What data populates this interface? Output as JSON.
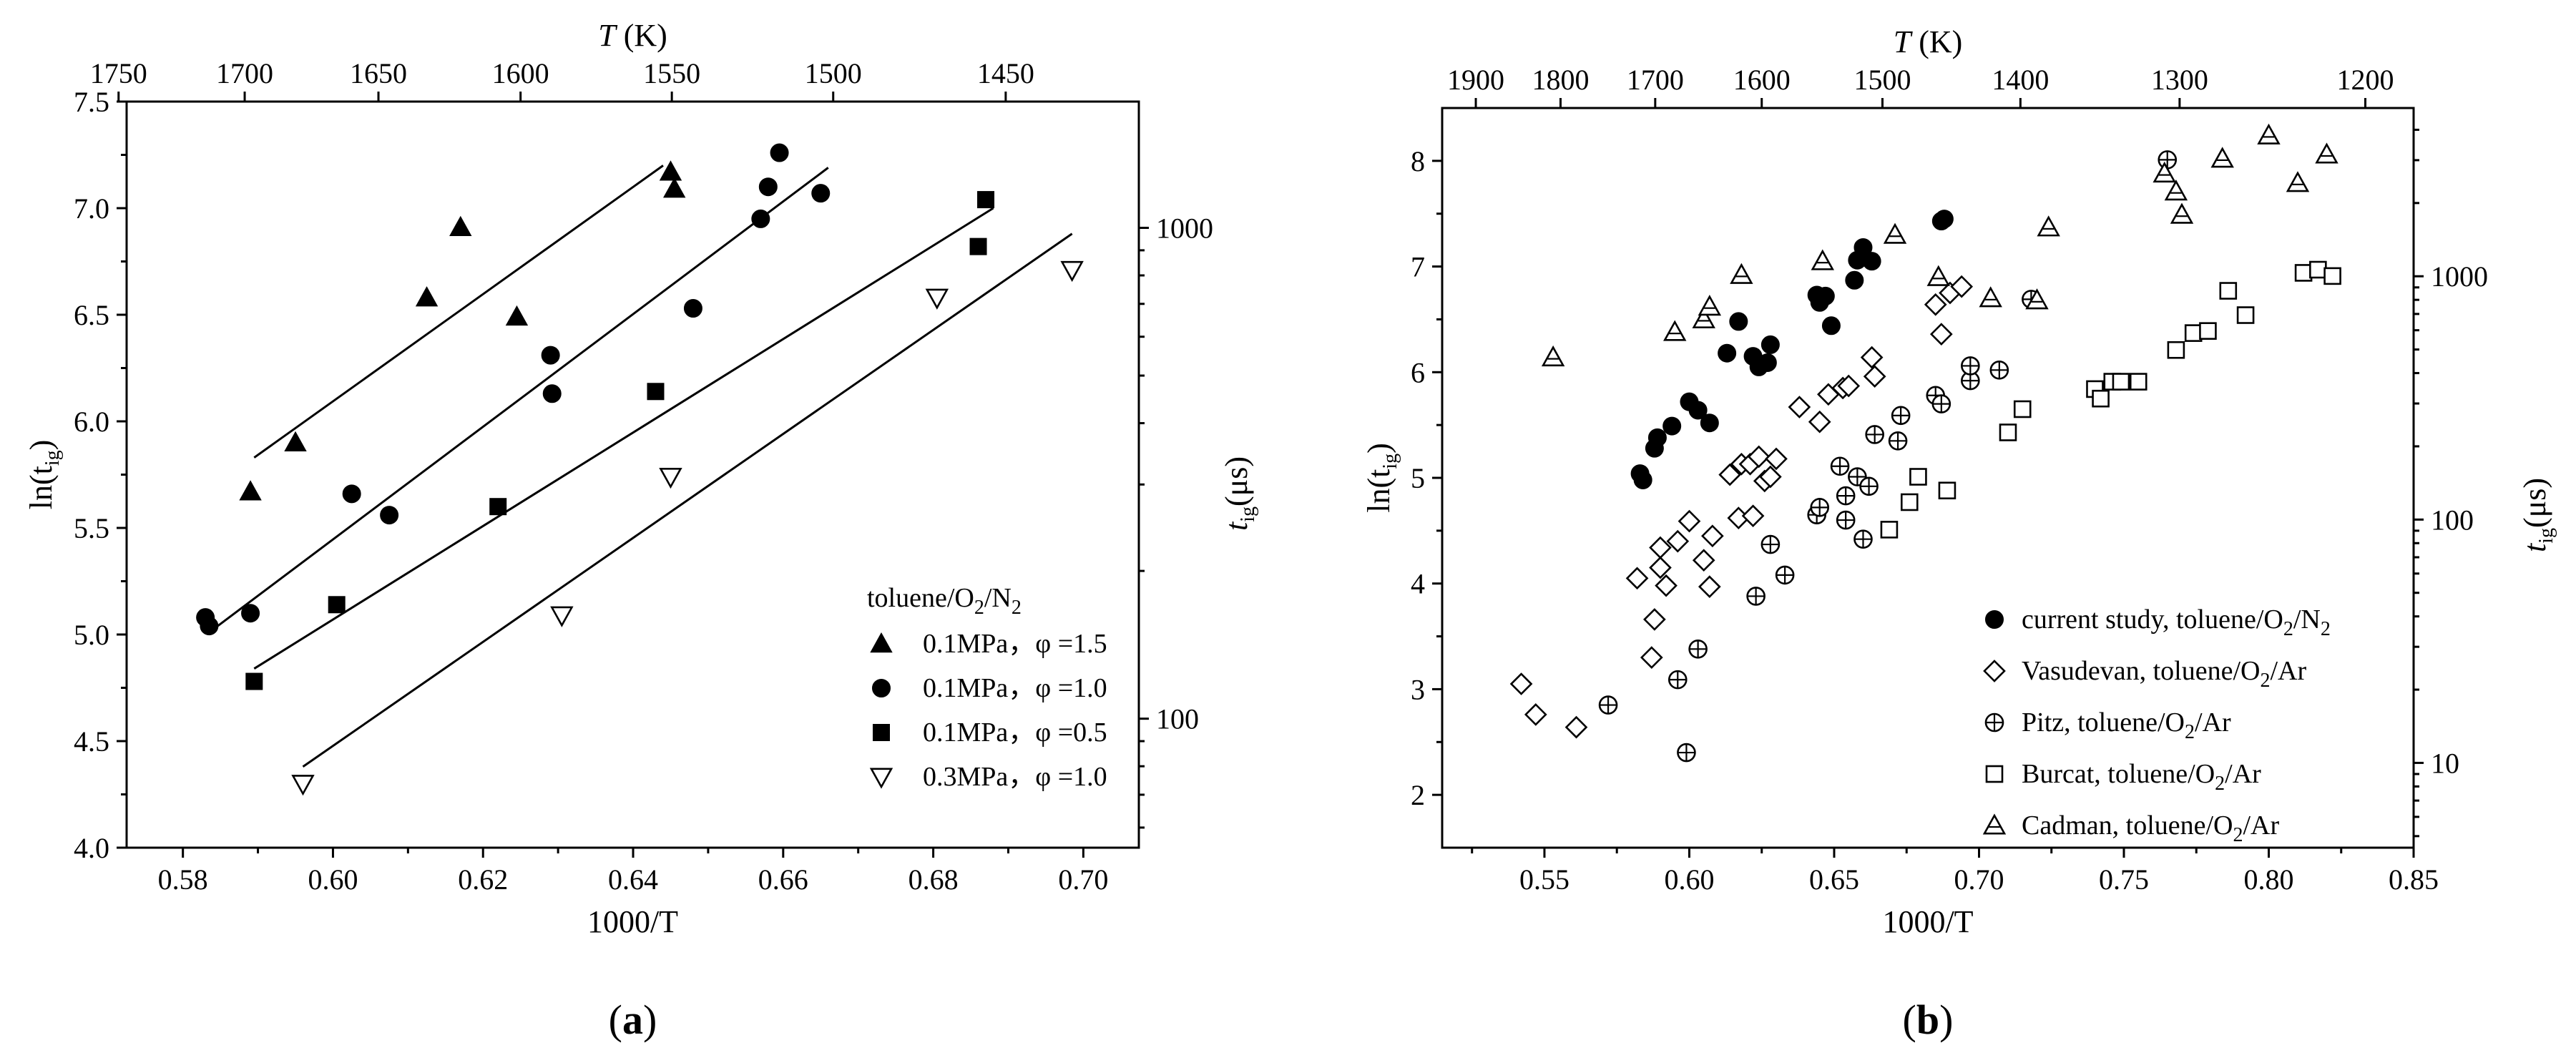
{
  "chart_data": [
    {
      "panel_label_open": "(",
      "panel_label_letter": "a",
      "panel_label_close": ")",
      "type": "scatter",
      "xlabel": "1000/T",
      "ylabel_main": "ln(t",
      "ylabel_sub": "ig",
      "ylabel_close": ")",
      "top_xlabel_T": "T",
      "top_xlabel_unit": " (K)",
      "right_ylabel_main": "t",
      "right_ylabel_sub": "ig",
      "right_ylabel_unit": "(μs)",
      "xlim": [
        0.5725,
        0.7074
      ],
      "ylim": [
        4.0,
        7.5
      ],
      "x_ticks": [
        "0.58",
        "0.60",
        "0.62",
        "0.64",
        "0.66",
        "0.68",
        "0.70"
      ],
      "y_ticks": [
        "4.0",
        "4.5",
        "5.0",
        "5.5",
        "6.0",
        "6.5",
        "7.0",
        "7.5"
      ],
      "top_ticks": [
        {
          "T": 1750,
          "label": "1750"
        },
        {
          "T": 1700,
          "label": "1700"
        },
        {
          "T": 1650,
          "label": "1650"
        },
        {
          "T": 1600,
          "label": "1600"
        },
        {
          "T": 1550,
          "label": "1550"
        },
        {
          "T": 1500,
          "label": "1500"
        },
        {
          "T": 1450,
          "label": "1450"
        }
      ],
      "right_ticks": [
        {
          "value": 100,
          "label": "100"
        },
        {
          "value": 1000,
          "label": "1000"
        }
      ],
      "legend_title_parts": [
        "toluene/O",
        "2",
        "/N",
        "2"
      ],
      "series": [
        {
          "name": "0.1MPa, φ =1.5",
          "label": "0.1MPa，φ =1.5",
          "marker": "triangle-filled",
          "points": [
            [
              0.589,
              5.67
            ],
            [
              0.595,
              5.9
            ],
            [
              0.6125,
              6.58
            ],
            [
              0.617,
              6.91
            ],
            [
              0.6245,
              6.49
            ],
            [
              0.645,
              7.17
            ],
            [
              0.6455,
              7.09
            ]
          ],
          "fit": [
            [
              0.5895,
              5.83
            ],
            [
              0.644,
              7.2
            ]
          ]
        },
        {
          "name": "0.1MPa, φ =1.0",
          "label": "0.1MPa，φ =1.0",
          "marker": "circle-filled",
          "points": [
            [
              0.583,
              5.08
            ],
            [
              0.5835,
              5.04
            ],
            [
              0.589,
              5.1
            ],
            [
              0.6025,
              5.66
            ],
            [
              0.6075,
              5.56
            ],
            [
              0.629,
              6.31
            ],
            [
              0.6292,
              6.13
            ],
            [
              0.648,
              6.53
            ],
            [
              0.657,
              6.95
            ],
            [
              0.658,
              7.1
            ],
            [
              0.6595,
              7.26
            ],
            [
              0.665,
              7.07
            ]
          ],
          "fit": [
            [
              0.5835,
              5.01
            ],
            [
              0.666,
              7.19
            ]
          ]
        },
        {
          "name": "0.1MPa, φ =0.5",
          "label": "0.1MPa，φ =0.5",
          "marker": "square-filled",
          "points": [
            [
              0.5895,
              4.78
            ],
            [
              0.6005,
              5.14
            ],
            [
              0.622,
              5.6
            ],
            [
              0.643,
              6.14
            ],
            [
              0.686,
              6.82
            ],
            [
              0.687,
              7.04
            ]
          ],
          "fit": [
            [
              0.5895,
              4.84
            ],
            [
              0.688,
              7.0
            ]
          ]
        },
        {
          "name": "0.3MPa, φ =1.0",
          "label": "0.3MPa，φ =1.0",
          "marker": "triangle-down-open",
          "points": [
            [
              0.596,
              4.3
            ],
            [
              0.6305,
              5.09
            ],
            [
              0.645,
              5.74
            ],
            [
              0.6805,
              6.58
            ],
            [
              0.6985,
              6.71
            ]
          ],
          "fit": [
            [
              0.596,
              4.38
            ],
            [
              0.6985,
              6.88
            ]
          ]
        }
      ]
    },
    {
      "panel_label_open": "(",
      "panel_label_letter": "b",
      "panel_label_close": ")",
      "type": "scatter",
      "xlabel": "1000/T",
      "ylabel_main": "ln(t",
      "ylabel_sub": "ig",
      "ylabel_close": ")",
      "top_xlabel_T": "T",
      "top_xlabel_unit": " (K)",
      "right_ylabel_main": "t",
      "right_ylabel_sub": "ig",
      "right_ylabel_unit": "(μs)",
      "xlim": [
        0.5147,
        0.85
      ],
      "ylim": [
        1.5,
        8.5
      ],
      "x_ticks": [
        "0.55",
        "0.60",
        "0.65",
        "0.70",
        "0.75",
        "0.80",
        "0.85"
      ],
      "y_ticks": [
        "2",
        "3",
        "4",
        "5",
        "6",
        "7",
        "8"
      ],
      "top_ticks": [
        {
          "T": 1900,
          "label": "1900"
        },
        {
          "T": 1800,
          "label": "1800"
        },
        {
          "T": 1700,
          "label": "1700"
        },
        {
          "T": 1600,
          "label": "1600"
        },
        {
          "T": 1500,
          "label": "1500"
        },
        {
          "T": 1400,
          "label": "1400"
        },
        {
          "T": 1300,
          "label": "1300"
        },
        {
          "T": 1200,
          "label": "1200"
        }
      ],
      "right_ticks": [
        {
          "value": 10,
          "label": "10"
        },
        {
          "value": 100,
          "label": "100"
        },
        {
          "value": 1000,
          "label": "1000"
        }
      ],
      "series": [
        {
          "name": "current study",
          "label_parts": [
            "current study, toluene/O",
            "2",
            "/N",
            "2"
          ],
          "marker": "circle-filled",
          "points": [
            [
              0.583,
              5.04
            ],
            [
              0.584,
              4.98
            ],
            [
              0.588,
              5.28
            ],
            [
              0.589,
              5.38
            ],
            [
              0.594,
              5.49
            ],
            [
              0.6,
              5.72
            ],
            [
              0.603,
              5.64
            ],
            [
              0.607,
              5.52
            ],
            [
              0.613,
              6.18
            ],
            [
              0.617,
              6.48
            ],
            [
              0.622,
              6.15
            ],
            [
              0.624,
              6.05
            ],
            [
              0.627,
              6.09
            ],
            [
              0.628,
              6.26
            ],
            [
              0.644,
              6.73
            ],
            [
              0.645,
              6.66
            ],
            [
              0.647,
              6.72
            ],
            [
              0.649,
              6.44
            ],
            [
              0.657,
              6.87
            ],
            [
              0.658,
              7.06
            ],
            [
              0.66,
              7.18
            ],
            [
              0.663,
              7.05
            ],
            [
              0.687,
              7.43
            ],
            [
              0.688,
              7.45
            ]
          ]
        },
        {
          "name": "Vasudevan",
          "label_parts": [
            "Vasudevan, toluene/O",
            "2",
            "/Ar"
          ],
          "marker": "diamond-open",
          "points": [
            [
              0.542,
              3.05
            ],
            [
              0.547,
              2.76
            ],
            [
              0.561,
              2.64
            ],
            [
              0.582,
              4.05
            ],
            [
              0.587,
              3.3
            ],
            [
              0.588,
              3.66
            ],
            [
              0.59,
              4.15
            ],
            [
              0.59,
              4.34
            ],
            [
              0.592,
              3.98
            ],
            [
              0.596,
              4.4
            ],
            [
              0.6,
              4.59
            ],
            [
              0.605,
              4.22
            ],
            [
              0.607,
              3.97
            ],
            [
              0.608,
              4.45
            ],
            [
              0.614,
              5.03
            ],
            [
              0.617,
              4.62
            ],
            [
              0.618,
              5.13
            ],
            [
              0.621,
              5.13
            ],
            [
              0.622,
              4.64
            ],
            [
              0.624,
              5.2
            ],
            [
              0.626,
              4.97
            ],
            [
              0.628,
              5.01
            ],
            [
              0.63,
              5.18
            ],
            [
              0.638,
              5.67
            ],
            [
              0.645,
              5.53
            ],
            [
              0.648,
              5.79
            ],
            [
              0.653,
              5.85
            ],
            [
              0.655,
              5.87
            ],
            [
              0.663,
              6.14
            ],
            [
              0.664,
              5.96
            ],
            [
              0.685,
              6.64
            ],
            [
              0.687,
              6.36
            ],
            [
              0.69,
              6.75
            ],
            [
              0.694,
              6.81
            ]
          ]
        },
        {
          "name": "Pitz",
          "label_parts": [
            "Pitz, toluene/O",
            "2",
            "/Ar"
          ],
          "marker": "circle-plus",
          "points": [
            [
              0.572,
              2.85
            ],
            [
              0.596,
              3.09
            ],
            [
              0.599,
              2.4
            ],
            [
              0.603,
              3.38
            ],
            [
              0.623,
              3.88
            ],
            [
              0.628,
              4.37
            ],
            [
              0.633,
              4.08
            ],
            [
              0.644,
              4.65
            ],
            [
              0.645,
              4.72
            ],
            [
              0.652,
              5.11
            ],
            [
              0.654,
              4.83
            ],
            [
              0.654,
              4.6
            ],
            [
              0.658,
              5.01
            ],
            [
              0.66,
              4.42
            ],
            [
              0.662,
              4.92
            ],
            [
              0.664,
              5.41
            ],
            [
              0.672,
              5.35
            ],
            [
              0.673,
              5.59
            ],
            [
              0.685,
              5.78
            ],
            [
              0.687,
              5.7
            ],
            [
              0.697,
              5.92
            ],
            [
              0.697,
              6.06
            ],
            [
              0.707,
              6.02
            ],
            [
              0.718,
              6.69
            ],
            [
              0.765,
              8.01
            ]
          ]
        },
        {
          "name": "Burcat",
          "label_parts": [
            "Burcat, toluene/O",
            "2",
            "/Ar"
          ],
          "marker": "square-open",
          "points": [
            [
              0.669,
              4.51
            ],
            [
              0.676,
              4.77
            ],
            [
              0.679,
              5.01
            ],
            [
              0.689,
              4.88
            ],
            [
              0.71,
              5.43
            ],
            [
              0.715,
              5.65
            ],
            [
              0.74,
              5.84
            ],
            [
              0.742,
              5.75
            ],
            [
              0.746,
              5.91
            ],
            [
              0.749,
              5.91
            ],
            [
              0.755,
              5.91
            ],
            [
              0.768,
              6.21
            ],
            [
              0.774,
              6.37
            ],
            [
              0.779,
              6.39
            ],
            [
              0.786,
              6.77
            ],
            [
              0.792,
              6.54
            ],
            [
              0.812,
              6.94
            ],
            [
              0.817,
              6.97
            ],
            [
              0.822,
              6.91
            ]
          ]
        },
        {
          "name": "Cadman",
          "label_parts": [
            "Cadman, toluene/O",
            "2",
            "/Ar"
          ],
          "marker": "triangle-bar-open",
          "points": [
            [
              0.553,
              6.14
            ],
            [
              0.595,
              6.38
            ],
            [
              0.605,
              6.5
            ],
            [
              0.607,
              6.62
            ],
            [
              0.618,
              6.92
            ],
            [
              0.646,
              7.05
            ],
            [
              0.671,
              7.3
            ],
            [
              0.686,
              6.9
            ],
            [
              0.704,
              6.7
            ],
            [
              0.72,
              6.68
            ],
            [
              0.724,
              7.37
            ],
            [
              0.764,
              7.88
            ],
            [
              0.768,
              7.71
            ],
            [
              0.77,
              7.49
            ],
            [
              0.784,
              8.02
            ],
            [
              0.8,
              8.24
            ],
            [
              0.81,
              7.79
            ],
            [
              0.82,
              8.06
            ]
          ]
        }
      ]
    }
  ]
}
